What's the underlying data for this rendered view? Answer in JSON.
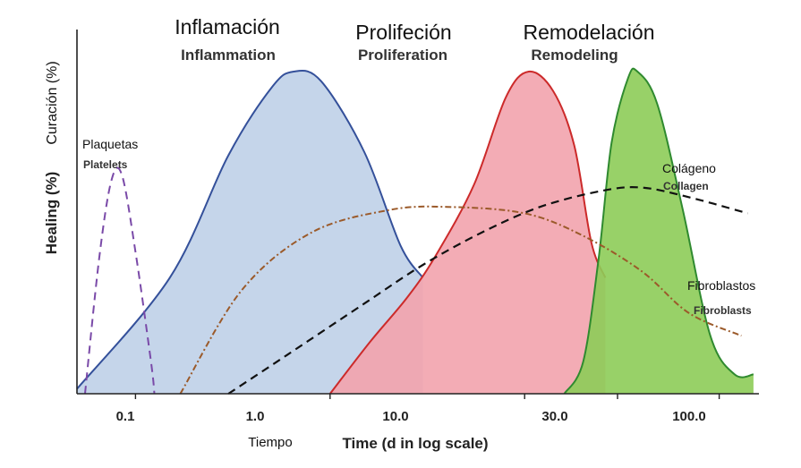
{
  "chart_data": {
    "type": "area",
    "title": "",
    "xlabel": "Time (d in log scale)",
    "xlabel_es": "Tiempo",
    "ylabel": "Healing (%)",
    "ylabel_es": "Curación (%)",
    "x_scale": "log",
    "xlim": [
      0.05,
      160
    ],
    "ylim": [
      0,
      100
    ],
    "x_ticks": [
      0.1,
      1.0,
      10.0,
      30.0,
      100.0
    ],
    "x_tick_labels": [
      "0.1",
      "1.0",
      "10.0",
      "30.0",
      "100.0"
    ],
    "grid": false,
    "phases": [
      {
        "name": "Inflammation",
        "name_es": "Inflamación",
        "color": "#bfd0e8",
        "edge": "#34509a",
        "points": [
          [
            0.05,
            1.5
          ],
          [
            0.15,
            36
          ],
          [
            0.3,
            74
          ],
          [
            0.5,
            95
          ],
          [
            0.65,
            100
          ],
          [
            0.9,
            97
          ],
          [
            1.5,
            75
          ],
          [
            2.3,
            46
          ],
          [
            3.0,
            36
          ]
        ]
      },
      {
        "name": "Proliferation",
        "name_es": "Prolifeción",
        "color": "#f2a3ad",
        "edge": "#cc2a2a",
        "points": [
          [
            1.0,
            0
          ],
          [
            1.6,
            16
          ],
          [
            2.5,
            30
          ],
          [
            3.5,
            43
          ],
          [
            5.5,
            65
          ],
          [
            8.0,
            92
          ],
          [
            10.5,
            100
          ],
          [
            14.0,
            94
          ],
          [
            18.0,
            77
          ],
          [
            22.0,
            47
          ],
          [
            26.0,
            36
          ]
        ]
      },
      {
        "name": "Remodeling",
        "name_es": "Remodelación",
        "color": "#8dcc58",
        "edge": "#2f8a2f",
        "points": [
          [
            16.0,
            0
          ],
          [
            20.0,
            10
          ],
          [
            24.0,
            42
          ],
          [
            28.0,
            78
          ],
          [
            34.0,
            98
          ],
          [
            38.0,
            100
          ],
          [
            48.0,
            90
          ],
          [
            65.0,
            57
          ],
          [
            90.0,
            18
          ],
          [
            120.0,
            6
          ],
          [
            150.0,
            6
          ]
        ]
      }
    ],
    "series": [
      {
        "name": "Platelets",
        "name_es": "Plaquetas",
        "color": "#7a4aa8",
        "style": "dashed",
        "points": [
          [
            0.055,
            0
          ],
          [
            0.065,
            42
          ],
          [
            0.075,
            66
          ],
          [
            0.085,
            68
          ],
          [
            0.1,
            44
          ],
          [
            0.12,
            10
          ],
          [
            0.125,
            0
          ]
        ]
      },
      {
        "name": "Fibroblasts",
        "name_es": "Fibroblastos",
        "color": "#9b5a2a",
        "style": "dashdot",
        "points": [
          [
            0.17,
            0
          ],
          [
            0.35,
            32
          ],
          [
            0.8,
            50
          ],
          [
            2.0,
            57
          ],
          [
            4.0,
            58
          ],
          [
            10.0,
            56
          ],
          [
            20.0,
            49
          ],
          [
            40.0,
            38
          ],
          [
            70.0,
            25
          ],
          [
            130.0,
            18
          ]
        ]
      },
      {
        "name": "Collagen",
        "name_es": "Colágeno",
        "color": "#111111",
        "style": "dashed",
        "points": [
          [
            0.3,
            0
          ],
          [
            0.6,
            12
          ],
          [
            1.5,
            28
          ],
          [
            3.0,
            40
          ],
          [
            6.0,
            50
          ],
          [
            12.0,
            58
          ],
          [
            25.0,
            63
          ],
          [
            40.0,
            64
          ],
          [
            70.0,
            61
          ],
          [
            140.0,
            56
          ]
        ]
      }
    ]
  }
}
